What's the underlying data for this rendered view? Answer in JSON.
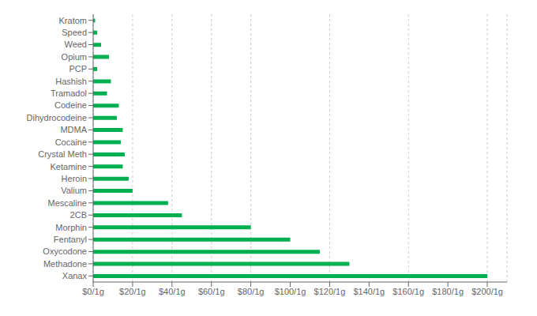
{
  "chart_data": {
    "type": "bar",
    "orientation": "horizontal",
    "categories": [
      "Kratom",
      "Speed",
      "Weed",
      "Opium",
      "PCP",
      "Hashish",
      "Tramadol",
      "Codeine",
      "Dihydrocodeine",
      "MDMA",
      "Cocaine",
      "Crystal Meth",
      "Ketamine",
      "Heroin",
      "Valium",
      "Mescaline",
      "2CB",
      "Morphin",
      "Fentanyl",
      "Oxycodone",
      "Methadone",
      "Xanax"
    ],
    "values": [
      1,
      2,
      4,
      8,
      2,
      9,
      7,
      13,
      12,
      15,
      14,
      16,
      15,
      18,
      20,
      38,
      45,
      80,
      100,
      115,
      130,
      200
    ],
    "color": "#00b050",
    "xlim": [
      0,
      210
    ],
    "xticks": [
      {
        "value": 0,
        "label": "$0/1g"
      },
      {
        "value": 20,
        "label": "$20/1g"
      },
      {
        "value": 40,
        "label": "$40/1g"
      },
      {
        "value": 60,
        "label": "$60/1g"
      },
      {
        "value": 80,
        "label": "$80/1g"
      },
      {
        "value": 100,
        "label": "$100/1g"
      },
      {
        "value": 120,
        "label": "$120/1g"
      },
      {
        "value": 140,
        "label": "$140/1g"
      },
      {
        "value": 160,
        "label": "$160/1g"
      },
      {
        "value": 180,
        "label": "$180/1g"
      },
      {
        "value": 200,
        "label": "$200/1g"
      }
    ],
    "grid": true
  }
}
